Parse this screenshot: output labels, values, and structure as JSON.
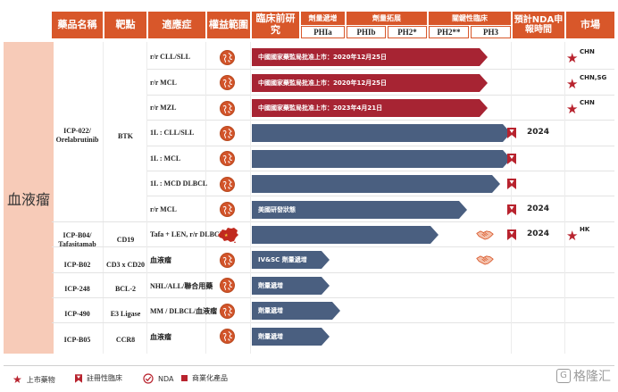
{
  "header": {
    "drug_name": "藥品名稱",
    "target": "靶點",
    "indication": "適應症",
    "rights": "權益範圍",
    "preclinical": "臨床前研究",
    "dose_escalation": "劑量遞增",
    "dose_expansion": "劑量拓展",
    "pivotal": "關鍵性臨床",
    "expected_nda": "預計NDA申報時間",
    "market": "市場",
    "phases": [
      "PHIa",
      "PHIb",
      "PH2*",
      "PH2**",
      "PH3"
    ]
  },
  "category": "血液瘤",
  "drug_groups": [
    {
      "name": "ICP-022/ Orelabrutinib",
      "target": "BTK"
    },
    {
      "name": "ICP-B04/ Tafasitamab",
      "target": "CD19"
    },
    {
      "name": "ICP-B02",
      "target": "CD3 x CD20"
    },
    {
      "name": "ICP-248",
      "target": "BCL-2"
    },
    {
      "name": "ICP-490",
      "target": "E3 Ligase"
    },
    {
      "name": "ICP-B05",
      "target": "CCR8"
    }
  ],
  "rows": [
    {
      "indication": "r/r CLL/SLL",
      "rights": "globe",
      "bar_color": "#a72433",
      "bar_label": "中國國家藥監局批准上市：2020年12月25日",
      "stage": 0.91,
      "market": "CHN",
      "bookmark": false,
      "year": "",
      "handshake": false
    },
    {
      "indication": "r/r MCL",
      "rights": "globe",
      "bar_color": "#a72433",
      "bar_label": "中國國家藥監局批准上市：2020年12月25日",
      "stage": 0.91,
      "market": "CHN,SG",
      "bookmark": false,
      "year": "",
      "handshake": false
    },
    {
      "indication": "r/r MZL",
      "rights": "globe",
      "bar_color": "#a72433",
      "bar_label": "中國國家藥監局批准上市：2023年4月21日",
      "stage": 0.91,
      "market": "CHN",
      "bookmark": false,
      "year": "",
      "handshake": false
    },
    {
      "indication": "1L : CLL/SLL",
      "rights": "globe",
      "bar_color": "#4a5f80",
      "bar_label": "",
      "stage": 1.0,
      "market": "",
      "bookmark": true,
      "year": "2024",
      "handshake": false
    },
    {
      "indication": "1L : MCL",
      "rights": "globe",
      "bar_color": "#4a5f80",
      "bar_label": "",
      "stage": 1.0,
      "market": "",
      "bookmark": true,
      "year": "",
      "handshake": false
    },
    {
      "indication": "1L : MCD DLBCL",
      "rights": "globe",
      "bar_color": "#4a5f80",
      "bar_label": "",
      "stage": 0.96,
      "market": "",
      "bookmark": true,
      "year": "",
      "handshake": false
    },
    {
      "indication": "r/r MCL",
      "rights": "globe",
      "bar_color": "#4a5f80",
      "bar_label": "美國研發狀態",
      "stage": 0.83,
      "market": "",
      "bookmark": true,
      "year": "2024",
      "handshake": false
    },
    {
      "indication": "Tafa + LEN, r/r DLBCL",
      "rights": "china",
      "bar_color": "#4a5f80",
      "bar_label": "",
      "stage": 0.72,
      "market": "HK",
      "bookmark": true,
      "year": "2024",
      "handshake": true
    },
    {
      "indication": "血液瘤",
      "rights": "globe",
      "bar_color": "#4a5f80",
      "bar_label": "IV&SC 劑量遞增",
      "stage": 0.3,
      "market": "",
      "bookmark": false,
      "year": "",
      "handshake": true
    },
    {
      "indication": "NHL/ALL/聯合用藥",
      "rights": "globe",
      "bar_color": "#4a5f80",
      "bar_label": "劑量遞增",
      "stage": 0.3,
      "market": "",
      "bookmark": false,
      "year": "",
      "handshake": false
    },
    {
      "indication": "MM / DLBCL/血液瘤",
      "rights": "globe",
      "bar_color": "#4a5f80",
      "bar_label": "劑量遞增",
      "stage": 0.34,
      "market": "",
      "bookmark": false,
      "year": "",
      "handshake": false
    },
    {
      "indication": "血液瘤",
      "rights": "globe",
      "bar_color": "#4a5f80",
      "bar_label": "劑量遞增",
      "stage": 0.3,
      "market": "",
      "bookmark": false,
      "year": "",
      "handshake": false
    }
  ],
  "legend": {
    "marketed": "上市藥物",
    "registrational": "註冊性臨床",
    "nda": "NDA",
    "commercial": "商業化產品"
  },
  "watermark": "格隆汇",
  "colors": {
    "header": "#d8572a",
    "approved": "#a72433",
    "in_progress": "#4a5f80",
    "star": "#b8232e"
  }
}
